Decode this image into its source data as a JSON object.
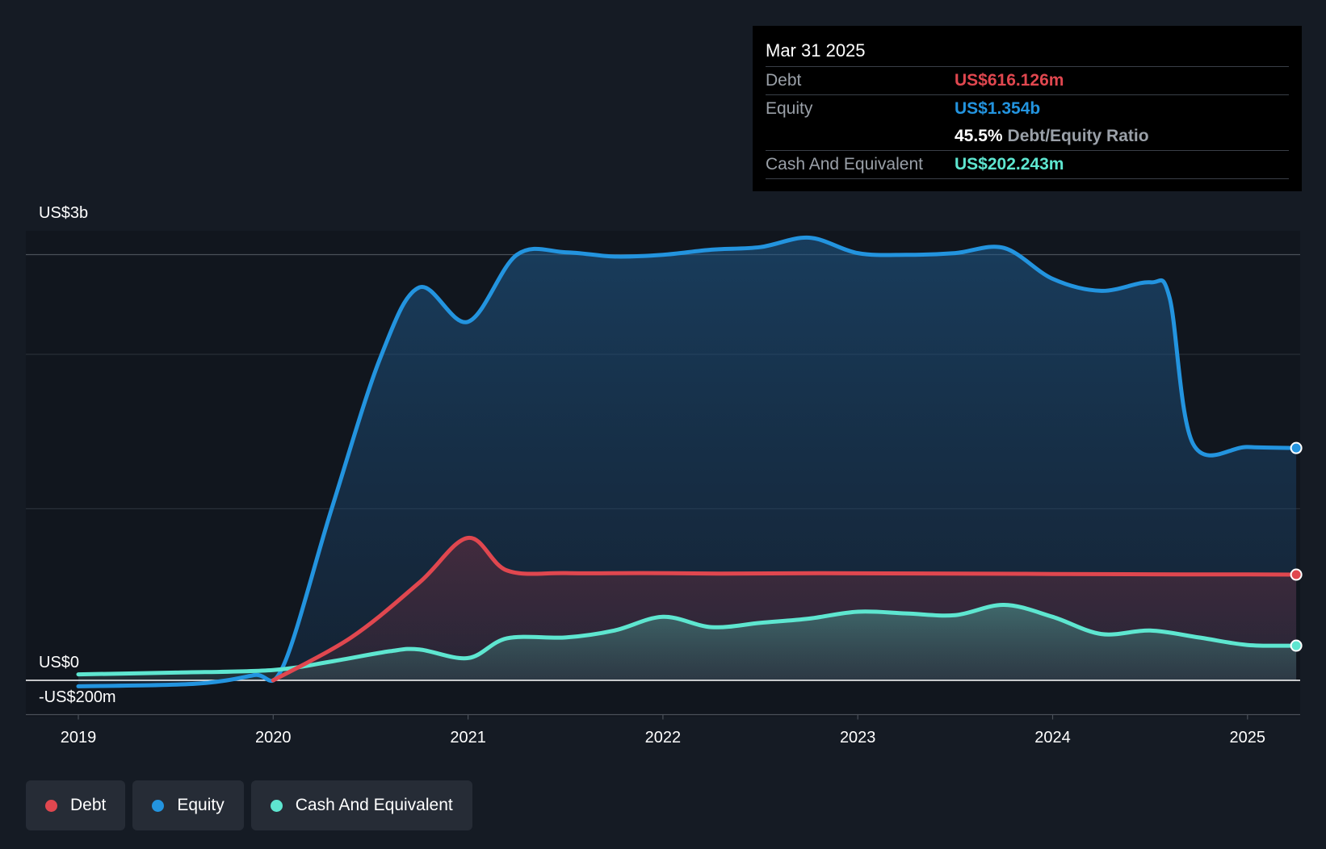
{
  "chart_data": {
    "type": "area",
    "x_ticks": [
      "2019",
      "2020",
      "2021",
      "2022",
      "2023",
      "2024",
      "2025"
    ],
    "y_labels": {
      "top": "US$3b",
      "zero": "US$0",
      "bottom": "-US$200m"
    },
    "ylim": [
      -200,
      2600
    ],
    "grid": true,
    "legend_position": "bottom-left",
    "series": [
      {
        "name": "Debt",
        "color": "#e0474f",
        "key": "debt",
        "points": [
          [
            2020.0,
            0
          ],
          [
            2020.4,
            250
          ],
          [
            2020.75,
            570
          ],
          [
            2021.0,
            830
          ],
          [
            2021.2,
            640
          ],
          [
            2021.5,
            625
          ],
          [
            2021.9,
            625
          ],
          [
            2022.3,
            622
          ],
          [
            2022.8,
            624
          ],
          [
            2023.5,
            622
          ],
          [
            2024.0,
            620
          ],
          [
            2024.5,
            618
          ],
          [
            2025.0,
            617
          ],
          [
            2025.25,
            616
          ]
        ]
      },
      {
        "name": "Equity",
        "color": "#2394df",
        "key": "equity",
        "points": [
          [
            2019.0,
            -35
          ],
          [
            2019.6,
            -20
          ],
          [
            2019.9,
            30
          ],
          [
            2020.05,
            80
          ],
          [
            2020.3,
            1000
          ],
          [
            2020.55,
            1880
          ],
          [
            2020.75,
            2290
          ],
          [
            2021.0,
            2090
          ],
          [
            2021.25,
            2480
          ],
          [
            2021.5,
            2495
          ],
          [
            2021.75,
            2470
          ],
          [
            2022.0,
            2480
          ],
          [
            2022.25,
            2510
          ],
          [
            2022.5,
            2525
          ],
          [
            2022.75,
            2580
          ],
          [
            2023.0,
            2490
          ],
          [
            2023.25,
            2480
          ],
          [
            2023.5,
            2490
          ],
          [
            2023.75,
            2520
          ],
          [
            2024.0,
            2340
          ],
          [
            2024.25,
            2270
          ],
          [
            2024.5,
            2320
          ],
          [
            2024.6,
            2230
          ],
          [
            2024.72,
            1380
          ],
          [
            2025.0,
            1360
          ],
          [
            2025.25,
            1354
          ]
        ]
      },
      {
        "name": "Cash And Equivalent",
        "color": "#5ee6d0",
        "key": "cash",
        "points": [
          [
            2019.0,
            35
          ],
          [
            2019.5,
            45
          ],
          [
            2020.0,
            60
          ],
          [
            2020.3,
            110
          ],
          [
            2020.6,
            170
          ],
          [
            2020.75,
            180
          ],
          [
            2021.0,
            130
          ],
          [
            2021.2,
            245
          ],
          [
            2021.5,
            250
          ],
          [
            2021.75,
            290
          ],
          [
            2022.0,
            370
          ],
          [
            2022.25,
            310
          ],
          [
            2022.5,
            335
          ],
          [
            2022.75,
            360
          ],
          [
            2023.0,
            400
          ],
          [
            2023.25,
            390
          ],
          [
            2023.5,
            380
          ],
          [
            2023.75,
            440
          ],
          [
            2024.0,
            370
          ],
          [
            2024.25,
            270
          ],
          [
            2024.5,
            290
          ],
          [
            2024.75,
            250
          ],
          [
            2025.0,
            206
          ],
          [
            2025.25,
            202
          ]
        ]
      }
    ]
  },
  "tooltip": {
    "date": "Mar 31 2025",
    "debt_label": "Debt",
    "debt_value": "US$616.126m",
    "equity_label": "Equity",
    "equity_value": "US$1.354b",
    "ratio_value": "45.5%",
    "ratio_label": "Debt/Equity Ratio",
    "cash_label": "Cash And Equivalent",
    "cash_value": "US$202.243m"
  },
  "legend": [
    {
      "label": "Debt",
      "color": "#e0474f"
    },
    {
      "label": "Equity",
      "color": "#2394df"
    },
    {
      "label": "Cash And Equivalent",
      "color": "#5ee6d0"
    }
  ]
}
